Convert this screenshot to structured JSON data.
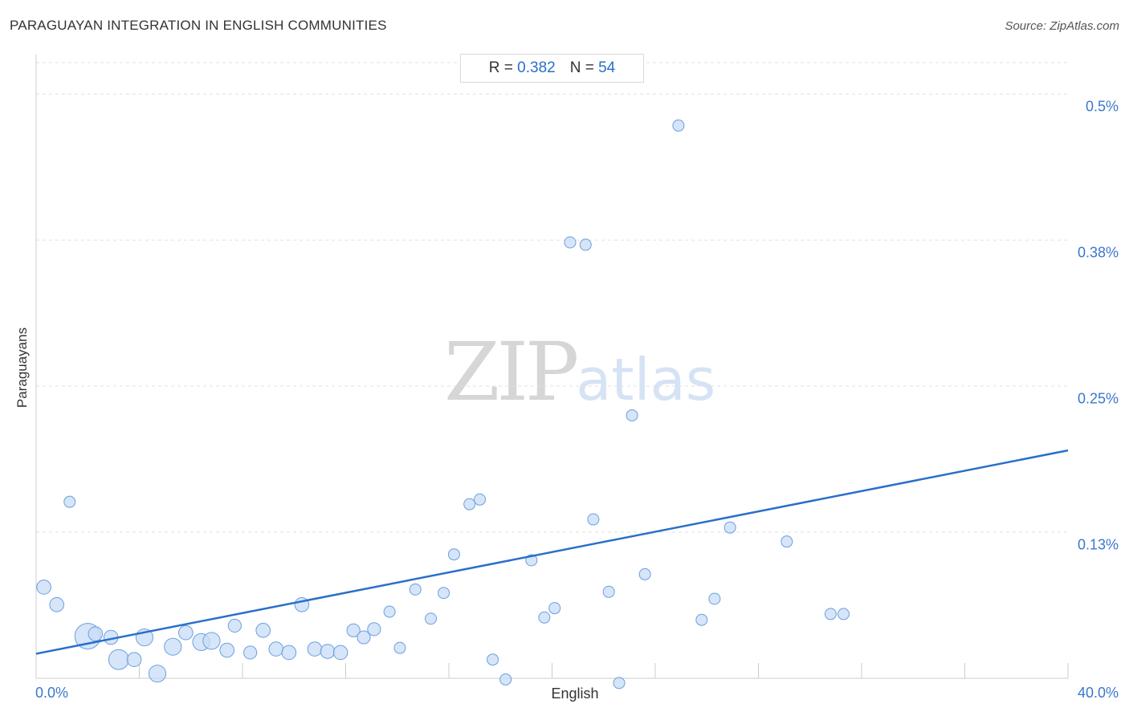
{
  "header": {
    "title": "PARAGUAYAN INTEGRATION IN ENGLISH COMMUNITIES",
    "source": "Source: ZipAtlas.com"
  },
  "stats": {
    "r_label": "R =",
    "r_value": "0.382",
    "n_label": "N =",
    "n_value": "54"
  },
  "watermark": {
    "zip": "ZIP",
    "atlas": "atlas"
  },
  "colors": {
    "point_fill": "#c8dcf5",
    "point_stroke": "#6a9fe0",
    "trend_line": "#2a6fc9",
    "grid": "#e0e0e0",
    "axis": "#cccccc"
  },
  "chart_data": {
    "type": "scatter",
    "xlabel": "English",
    "ylabel": "Paraguayans",
    "xlim": [
      0,
      40
    ],
    "ylim": [
      0,
      0.52
    ],
    "x_tick_labels": [
      {
        "value": 0,
        "label": "0.0%"
      },
      {
        "value": 40,
        "label": "40.0%"
      }
    ],
    "y_tick_labels": [
      {
        "value": 0.125,
        "label": "0.13%"
      },
      {
        "value": 0.25,
        "label": "0.25%"
      },
      {
        "value": 0.375,
        "label": "0.38%"
      },
      {
        "value": 0.5,
        "label": "0.5%"
      }
    ],
    "x_minor_ticks": [
      4,
      8,
      12,
      16,
      20,
      24,
      28,
      32,
      36,
      40
    ],
    "trend": {
      "x": [
        0,
        40
      ],
      "y": [
        0.021,
        0.195
      ]
    },
    "points": [
      {
        "x": 0.3,
        "y": 0.078,
        "size": 2
      },
      {
        "x": 0.8,
        "y": 0.063,
        "size": 2
      },
      {
        "x": 1.3,
        "y": 0.151,
        "size": 1.5
      },
      {
        "x": 2.0,
        "y": 0.036,
        "size": 4
      },
      {
        "x": 2.3,
        "y": 0.038,
        "size": 2
      },
      {
        "x": 2.9,
        "y": 0.035,
        "size": 2
      },
      {
        "x": 3.2,
        "y": 0.016,
        "size": 3
      },
      {
        "x": 3.8,
        "y": 0.016,
        "size": 2
      },
      {
        "x": 4.2,
        "y": 0.035,
        "size": 2.5
      },
      {
        "x": 4.7,
        "y": 0.004,
        "size": 2.5
      },
      {
        "x": 5.3,
        "y": 0.027,
        "size": 2.5
      },
      {
        "x": 5.8,
        "y": 0.039,
        "size": 2
      },
      {
        "x": 6.4,
        "y": 0.031,
        "size": 2.5
      },
      {
        "x": 6.8,
        "y": 0.032,
        "size": 2.5
      },
      {
        "x": 7.4,
        "y": 0.024,
        "size": 2
      },
      {
        "x": 7.7,
        "y": 0.045,
        "size": 1.8
      },
      {
        "x": 8.3,
        "y": 0.022,
        "size": 1.8
      },
      {
        "x": 8.8,
        "y": 0.041,
        "size": 2
      },
      {
        "x": 9.3,
        "y": 0.025,
        "size": 2
      },
      {
        "x": 9.8,
        "y": 0.022,
        "size": 2
      },
      {
        "x": 10.3,
        "y": 0.063,
        "size": 2
      },
      {
        "x": 10.8,
        "y": 0.025,
        "size": 2
      },
      {
        "x": 11.3,
        "y": 0.023,
        "size": 2
      },
      {
        "x": 11.8,
        "y": 0.022,
        "size": 2
      },
      {
        "x": 12.3,
        "y": 0.041,
        "size": 1.8
      },
      {
        "x": 12.7,
        "y": 0.035,
        "size": 1.8
      },
      {
        "x": 13.1,
        "y": 0.042,
        "size": 1.8
      },
      {
        "x": 13.7,
        "y": 0.057,
        "size": 1.5
      },
      {
        "x": 14.1,
        "y": 0.026,
        "size": 1.5
      },
      {
        "x": 14.7,
        "y": 0.076,
        "size": 1.5
      },
      {
        "x": 15.3,
        "y": 0.051,
        "size": 1.5
      },
      {
        "x": 15.8,
        "y": 0.073,
        "size": 1.5
      },
      {
        "x": 16.2,
        "y": 0.106,
        "size": 1.5
      },
      {
        "x": 16.8,
        "y": 0.149,
        "size": 1.5
      },
      {
        "x": 17.2,
        "y": 0.153,
        "size": 1.5
      },
      {
        "x": 17.7,
        "y": 0.016,
        "size": 1.5
      },
      {
        "x": 18.2,
        "y": -0.001,
        "size": 1.5
      },
      {
        "x": 19.2,
        "y": 0.101,
        "size": 1.5
      },
      {
        "x": 19.7,
        "y": 0.052,
        "size": 1.5
      },
      {
        "x": 20.1,
        "y": 0.06,
        "size": 1.5
      },
      {
        "x": 20.7,
        "y": 0.373,
        "size": 1.5
      },
      {
        "x": 21.3,
        "y": 0.371,
        "size": 1.5
      },
      {
        "x": 21.6,
        "y": 0.136,
        "size": 1.5
      },
      {
        "x": 22.2,
        "y": 0.074,
        "size": 1.5
      },
      {
        "x": 22.6,
        "y": -0.004,
        "size": 1.5
      },
      {
        "x": 23.1,
        "y": 0.225,
        "size": 1.5
      },
      {
        "x": 23.6,
        "y": 0.089,
        "size": 1.5
      },
      {
        "x": 24.9,
        "y": 0.473,
        "size": 1.5
      },
      {
        "x": 25.8,
        "y": 0.05,
        "size": 1.5
      },
      {
        "x": 26.3,
        "y": 0.068,
        "size": 1.5
      },
      {
        "x": 26.9,
        "y": 0.129,
        "size": 1.5
      },
      {
        "x": 29.1,
        "y": 0.117,
        "size": 1.5
      },
      {
        "x": 30.8,
        "y": 0.055,
        "size": 1.5
      },
      {
        "x": 31.3,
        "y": 0.055,
        "size": 1.5
      }
    ]
  }
}
